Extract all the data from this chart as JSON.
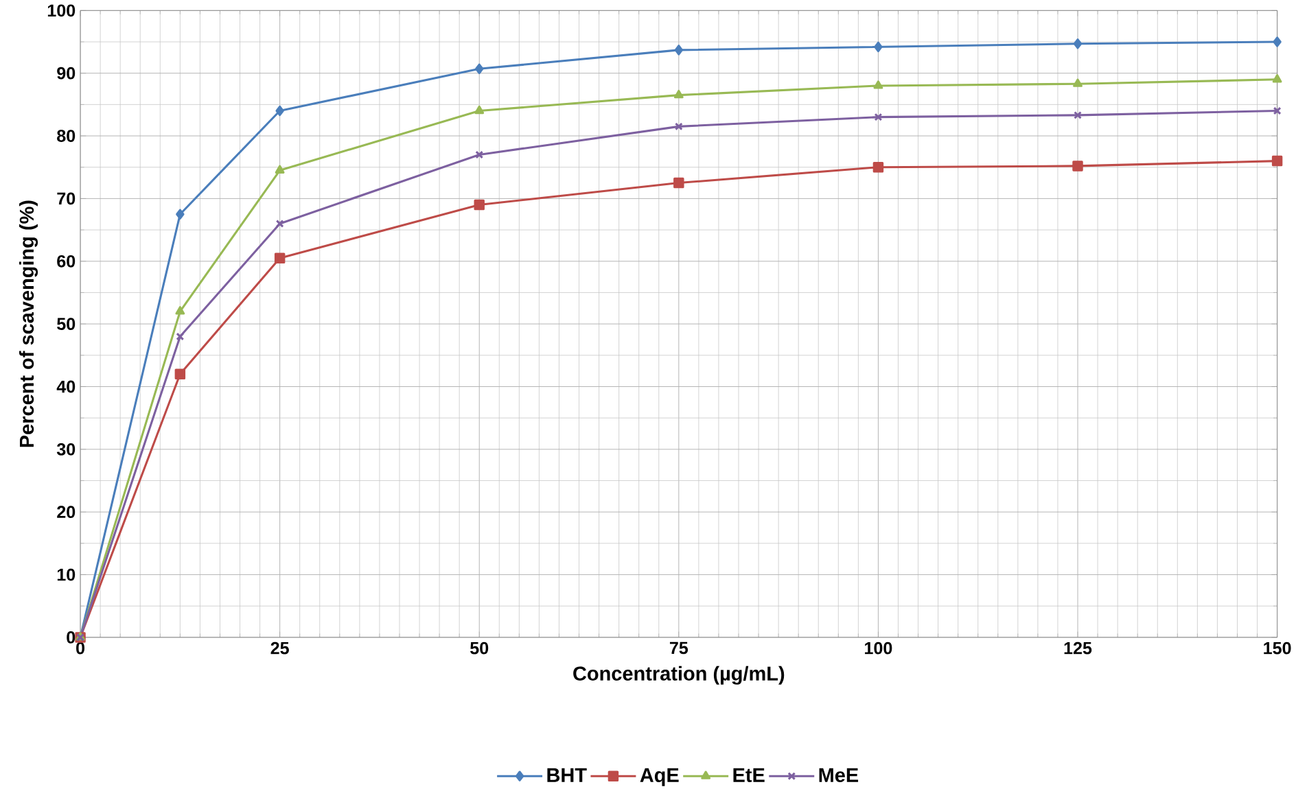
{
  "chart_data": {
    "type": "line",
    "xlabel": "Concentration (µg/mL)",
    "ylabel": "Percent of scavenging (%)",
    "x": [
      0,
      12.5,
      25,
      50,
      75,
      100,
      125,
      150
    ],
    "series": [
      {
        "name": "BHT",
        "color": "#4a7ebb",
        "marker": "diamond",
        "values": [
          0,
          67.5,
          84,
          90.7,
          93.7,
          94.2,
          94.7,
          95
        ]
      },
      {
        "name": "AqE",
        "color": "#be4b48",
        "marker": "square",
        "values": [
          0,
          42,
          60.5,
          69,
          72.5,
          75,
          75.2,
          76
        ]
      },
      {
        "name": "EtE",
        "color": "#98b954",
        "marker": "triangle",
        "values": [
          0,
          52,
          74.5,
          84,
          86.5,
          88,
          88.3,
          89
        ]
      },
      {
        "name": "MeE",
        "color": "#7d60a0",
        "marker": "cross",
        "values": [
          0,
          48,
          66,
          77,
          81.5,
          83,
          83.3,
          84
        ]
      }
    ],
    "xlim": [
      0,
      150
    ],
    "xticks": [
      0,
      25,
      50,
      75,
      100,
      125,
      150
    ],
    "ylim": [
      0,
      100
    ],
    "yticks": [
      0,
      10,
      20,
      30,
      40,
      50,
      60,
      70,
      80,
      90,
      100
    ],
    "grid": true,
    "legend": "bottom"
  }
}
